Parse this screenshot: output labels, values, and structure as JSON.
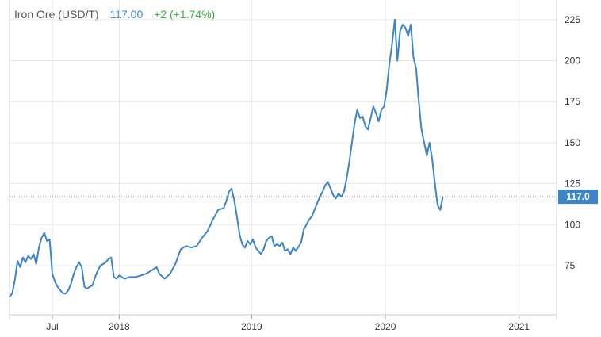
{
  "header": {
    "title": "Iron Ore (USD/T)",
    "price": "117.00",
    "change": "+2 (+1.74%)"
  },
  "colors": {
    "line": "#3d85c6",
    "change_positive": "#3cb043",
    "grid": "#e6e6e6",
    "badge": "#3d85c6"
  },
  "chart_data": {
    "type": "line",
    "title": "Iron Ore (USD/T)",
    "xlabel": "",
    "ylabel": "",
    "x_ticks": [
      "Jul",
      "2018",
      "2019",
      "2020",
      "2021"
    ],
    "y_ticks": [
      75,
      100,
      125,
      150,
      175,
      200,
      225
    ],
    "ylim": [
      45,
      237
    ],
    "xlim": [
      2017.18,
      2021.27
    ],
    "grid": true,
    "legend": "none",
    "last_value_label": "117.0",
    "series": [
      {
        "values": [
          [
            2017.18,
            56
          ],
          [
            2017.2,
            58
          ],
          [
            2017.22,
            66
          ],
          [
            2017.24,
            78
          ],
          [
            2017.26,
            74
          ],
          [
            2017.28,
            80
          ],
          [
            2017.3,
            77
          ],
          [
            2017.32,
            81
          ],
          [
            2017.34,
            79
          ],
          [
            2017.36,
            82
          ],
          [
            2017.38,
            76
          ],
          [
            2017.4,
            86
          ],
          [
            2017.42,
            92
          ],
          [
            2017.44,
            95
          ],
          [
            2017.46,
            90
          ],
          [
            2017.48,
            91
          ],
          [
            2017.5,
            70
          ],
          [
            2017.52,
            65
          ],
          [
            2017.54,
            62
          ],
          [
            2017.56,
            60
          ],
          [
            2017.58,
            58
          ],
          [
            2017.6,
            58
          ],
          [
            2017.62,
            60
          ],
          [
            2017.64,
            64
          ],
          [
            2017.66,
            70
          ],
          [
            2017.68,
            74
          ],
          [
            2017.7,
            77
          ],
          [
            2017.72,
            74
          ],
          [
            2017.74,
            62
          ],
          [
            2017.76,
            61
          ],
          [
            2017.78,
            62
          ],
          [
            2017.8,
            63
          ],
          [
            2017.82,
            68
          ],
          [
            2017.84,
            72
          ],
          [
            2017.86,
            75
          ],
          [
            2017.88,
            76
          ],
          [
            2017.9,
            77
          ],
          [
            2017.92,
            79
          ],
          [
            2017.94,
            80
          ],
          [
            2017.96,
            68
          ],
          [
            2017.98,
            67
          ],
          [
            2018.0,
            69
          ],
          [
            2018.04,
            67
          ],
          [
            2018.08,
            68
          ],
          [
            2018.12,
            68
          ],
          [
            2018.16,
            69
          ],
          [
            2018.2,
            70
          ],
          [
            2018.24,
            72
          ],
          [
            2018.28,
            74
          ],
          [
            2018.3,
            70
          ],
          [
            2018.34,
            67
          ],
          [
            2018.38,
            70
          ],
          [
            2018.42,
            76
          ],
          [
            2018.46,
            85
          ],
          [
            2018.5,
            87
          ],
          [
            2018.54,
            86
          ],
          [
            2018.58,
            87
          ],
          [
            2018.62,
            92
          ],
          [
            2018.66,
            96
          ],
          [
            2018.7,
            103
          ],
          [
            2018.74,
            109
          ],
          [
            2018.78,
            110
          ],
          [
            2018.8,
            114
          ],
          [
            2018.82,
            120
          ],
          [
            2018.84,
            122
          ],
          [
            2018.86,
            115
          ],
          [
            2018.88,
            105
          ],
          [
            2018.9,
            94
          ],
          [
            2018.92,
            88
          ],
          [
            2018.94,
            86
          ],
          [
            2018.96,
            90
          ],
          [
            2018.98,
            88
          ],
          [
            2019.0,
            91
          ],
          [
            2019.02,
            86
          ],
          [
            2019.04,
            84
          ],
          [
            2019.06,
            82
          ],
          [
            2019.08,
            85
          ],
          [
            2019.1,
            90
          ],
          [
            2019.12,
            92
          ],
          [
            2019.14,
            93
          ],
          [
            2019.16,
            87
          ],
          [
            2019.18,
            88
          ],
          [
            2019.2,
            87
          ],
          [
            2019.22,
            89
          ],
          [
            2019.24,
            84
          ],
          [
            2019.26,
            85
          ],
          [
            2019.28,
            82
          ],
          [
            2019.3,
            86
          ],
          [
            2019.32,
            84
          ],
          [
            2019.36,
            89
          ],
          [
            2019.38,
            97
          ],
          [
            2019.4,
            100
          ],
          [
            2019.42,
            103
          ],
          [
            2019.44,
            105
          ],
          [
            2019.46,
            109
          ],
          [
            2019.48,
            113
          ],
          [
            2019.5,
            117
          ],
          [
            2019.52,
            120
          ],
          [
            2019.54,
            124
          ],
          [
            2019.56,
            126
          ],
          [
            2019.58,
            122
          ],
          [
            2019.6,
            118
          ],
          [
            2019.62,
            116
          ],
          [
            2019.64,
            119
          ],
          [
            2019.66,
            117
          ],
          [
            2019.68,
            120
          ],
          [
            2019.7,
            128
          ],
          [
            2019.72,
            138
          ],
          [
            2019.74,
            150
          ],
          [
            2019.76,
            162
          ],
          [
            2019.78,
            170
          ],
          [
            2019.8,
            165
          ],
          [
            2019.82,
            166
          ],
          [
            2019.84,
            160
          ],
          [
            2019.86,
            158
          ],
          [
            2019.88,
            165
          ],
          [
            2019.9,
            172
          ],
          [
            2019.92,
            168
          ],
          [
            2019.94,
            163
          ],
          [
            2019.96,
            170
          ],
          [
            2019.98,
            172
          ],
          [
            2020.0,
            182
          ],
          [
            2020.02,
            198
          ],
          [
            2020.04,
            210
          ],
          [
            2020.06,
            225
          ],
          [
            2020.08,
            200
          ],
          [
            2020.1,
            218
          ],
          [
            2020.12,
            222
          ],
          [
            2020.14,
            220
          ],
          [
            2020.16,
            215
          ],
          [
            2020.18,
            222
          ],
          [
            2020.2,
            202
          ],
          [
            2020.22,
            195
          ],
          [
            2020.24,
            175
          ],
          [
            2020.26,
            158
          ],
          [
            2020.28,
            150
          ],
          [
            2020.3,
            142
          ],
          [
            2020.32,
            150
          ],
          [
            2020.34,
            140
          ],
          [
            2020.36,
            125
          ],
          [
            2020.38,
            112
          ],
          [
            2020.4,
            109
          ],
          [
            2020.42,
            117
          ]
        ]
      }
    ]
  }
}
